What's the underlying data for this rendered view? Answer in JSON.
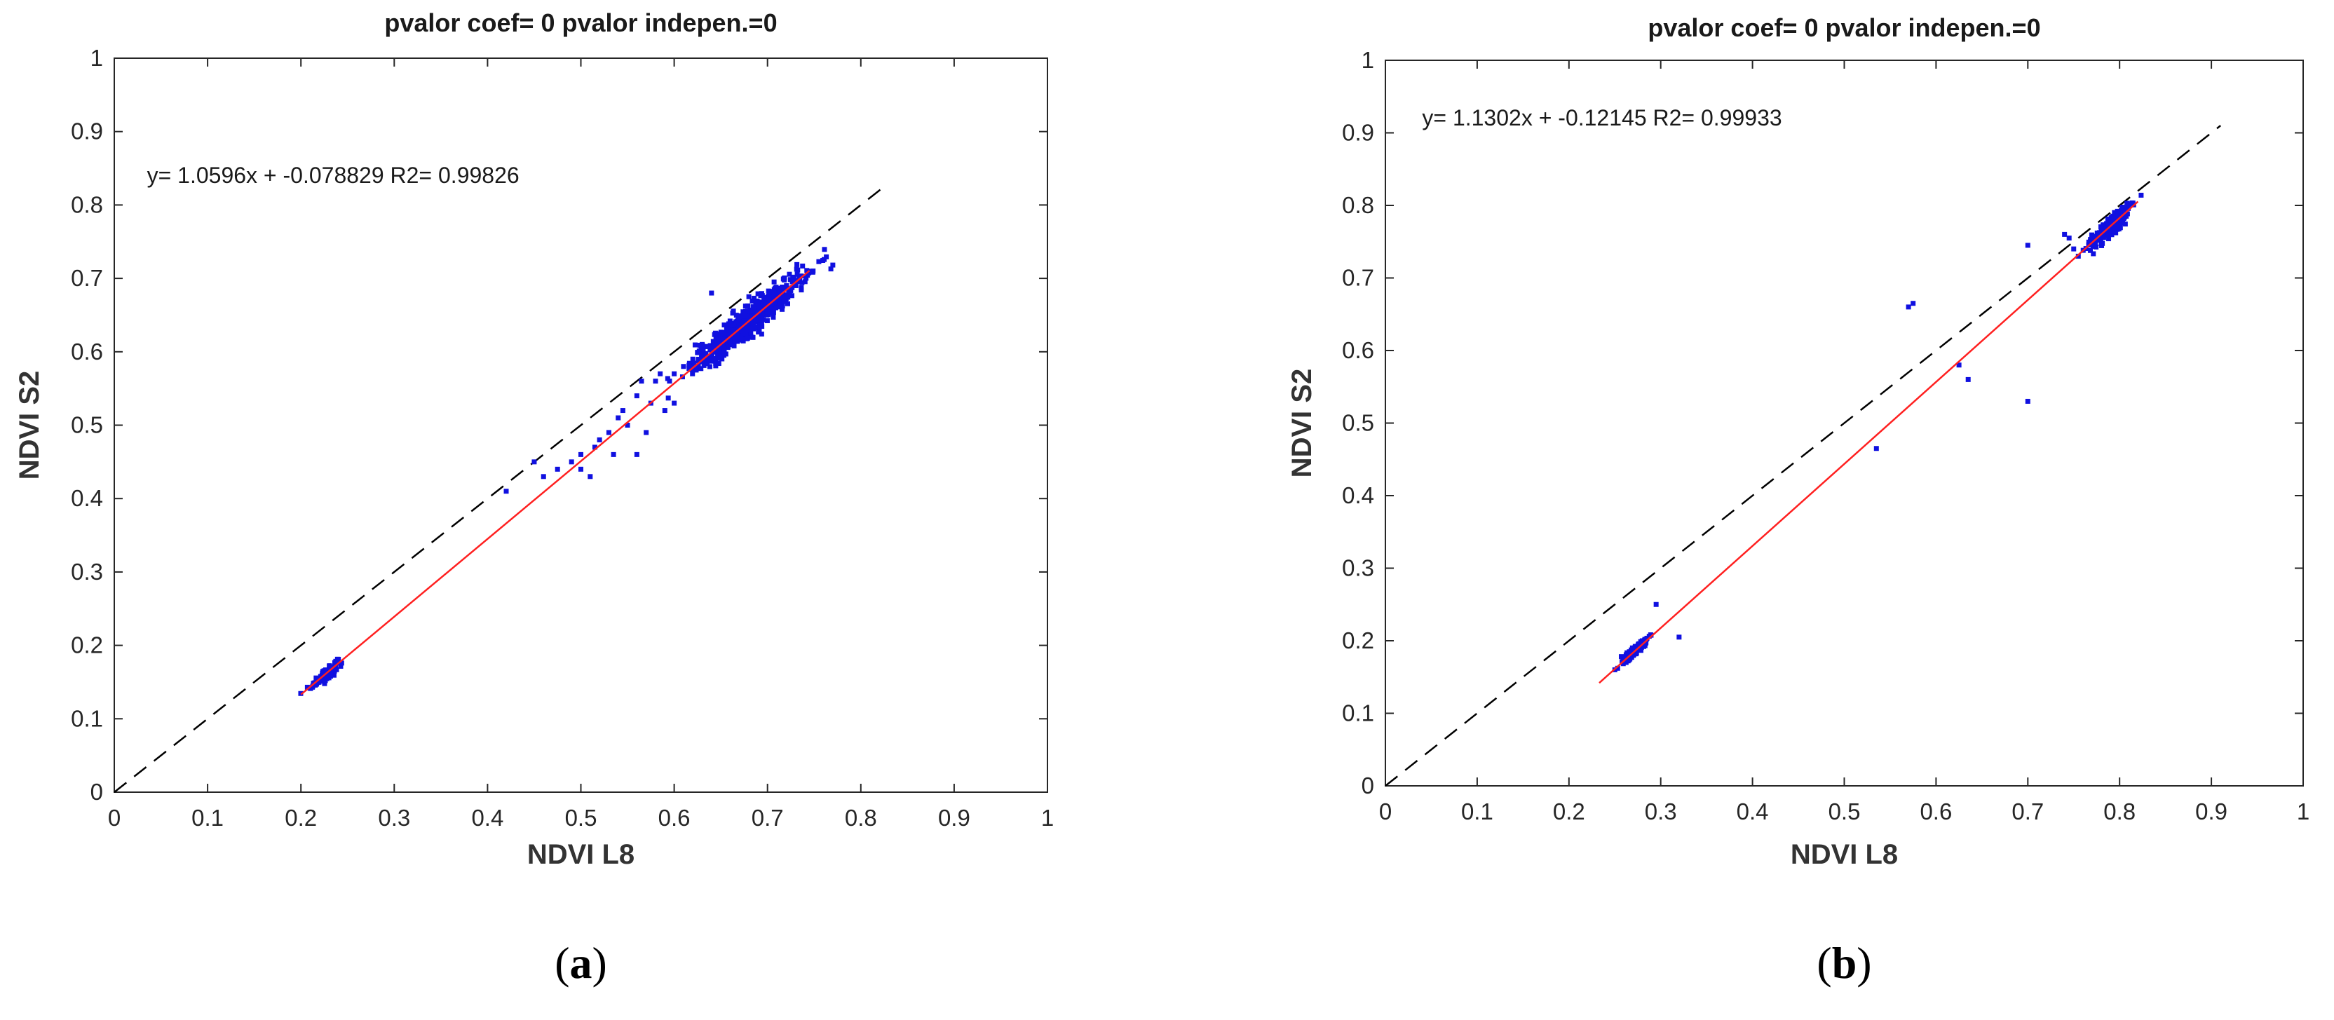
{
  "chart_data": [
    {
      "type": "scatter",
      "panel_label": "a",
      "title": "pvalor coef= 0  pvalor indepen.=0",
      "xlabel": "NDVI L8",
      "ylabel": "NDVI S2",
      "xlim": [
        0,
        1
      ],
      "ylim": [
        0,
        1
      ],
      "xticks": [
        "0",
        "0.1",
        "0.2",
        "0.3",
        "0.4",
        "0.5",
        "0.6",
        "0.7",
        "0.8",
        "0.9",
        "1"
      ],
      "yticks": [
        "0",
        "0.1",
        "0.2",
        "0.3",
        "0.4",
        "0.5",
        "0.6",
        "0.7",
        "0.8",
        "0.9",
        "1"
      ],
      "equation": "y= 1.0596x + -0.078829  R2= 0.99826",
      "fit": {
        "slope": 1.0596,
        "intercept": -0.078829,
        "x_range": [
          0.2,
          0.745
        ]
      },
      "reference_line": {
        "x_range": [
          0,
          0.825
        ]
      },
      "clusters": [
        {
          "center": [
            0.225,
            0.161
          ],
          "spread": [
            0.012,
            0.012
          ],
          "n": 110,
          "along_fit": true
        },
        {
          "center": [
            0.68,
            0.64
          ],
          "spread": [
            0.05,
            0.03
          ],
          "n": 650,
          "along_fit": true
        }
      ],
      "points": [
        [
          0.42,
          0.41
        ],
        [
          0.45,
          0.45
        ],
        [
          0.46,
          0.43
        ],
        [
          0.475,
          0.44
        ],
        [
          0.49,
          0.45
        ],
        [
          0.5,
          0.44
        ],
        [
          0.51,
          0.43
        ],
        [
          0.515,
          0.47
        ],
        [
          0.52,
          0.48
        ],
        [
          0.53,
          0.49
        ],
        [
          0.535,
          0.46
        ],
        [
          0.54,
          0.51
        ],
        [
          0.545,
          0.52
        ],
        [
          0.55,
          0.5
        ],
        [
          0.56,
          0.54
        ],
        [
          0.565,
          0.56
        ],
        [
          0.57,
          0.49
        ],
        [
          0.575,
          0.53
        ],
        [
          0.58,
          0.56
        ],
        [
          0.585,
          0.57
        ],
        [
          0.59,
          0.52
        ],
        [
          0.595,
          0.56
        ],
        [
          0.6,
          0.57
        ],
        [
          0.6,
          0.53
        ],
        [
          0.61,
          0.58
        ],
        [
          0.64,
          0.68
        ],
        [
          0.62,
          0.59
        ],
        [
          0.63,
          0.61
        ],
        [
          0.56,
          0.46
        ],
        [
          0.5,
          0.46
        ]
      ],
      "colors": {
        "points": "#1010e0",
        "fit": "#ff2020",
        "reference": "#000000"
      }
    },
    {
      "type": "scatter",
      "panel_label": "b",
      "title": "pvalor coef= 0  pvalor indepen.=0",
      "xlabel": "NDVI L8",
      "ylabel": "NDVI S2",
      "xlim": [
        0,
        1
      ],
      "ylim": [
        0,
        1
      ],
      "xticks": [
        "0",
        "0.1",
        "0.2",
        "0.3",
        "0.4",
        "0.5",
        "0.6",
        "0.7",
        "0.8",
        "0.9",
        "1"
      ],
      "yticks": [
        "0",
        "0.1",
        "0.2",
        "0.3",
        "0.4",
        "0.5",
        "0.6",
        "0.7",
        "0.8",
        "0.9",
        "1"
      ],
      "equation": "y= 1.1302x + -0.12145  R2= 0.99933",
      "fit": {
        "slope": 1.1302,
        "intercept": -0.12145,
        "x_range": [
          0.233,
          0.82
        ]
      },
      "reference_line": {
        "x_range": [
          0,
          0.91
        ]
      },
      "clusters": [
        {
          "center": [
            0.273,
            0.19
          ],
          "spread": [
            0.012,
            0.009
          ],
          "n": 130,
          "along_fit": true
        },
        {
          "center": [
            0.79,
            0.772
          ],
          "spread": [
            0.017,
            0.017
          ],
          "n": 300,
          "along_fit": true
        }
      ],
      "points": [
        [
          0.57,
          0.66
        ],
        [
          0.575,
          0.665
        ],
        [
          0.7,
          0.53
        ],
        [
          0.535,
          0.465
        ],
        [
          0.635,
          0.56
        ],
        [
          0.625,
          0.58
        ],
        [
          0.7,
          0.745
        ],
        [
          0.32,
          0.205
        ],
        [
          0.295,
          0.25
        ],
        [
          0.25,
          0.16
        ],
        [
          0.74,
          0.76
        ],
        [
          0.745,
          0.755
        ],
        [
          0.75,
          0.74
        ],
        [
          0.755,
          0.73
        ]
      ],
      "colors": {
        "points": "#1010e0",
        "fit": "#ff2020",
        "reference": "#000000"
      }
    }
  ]
}
